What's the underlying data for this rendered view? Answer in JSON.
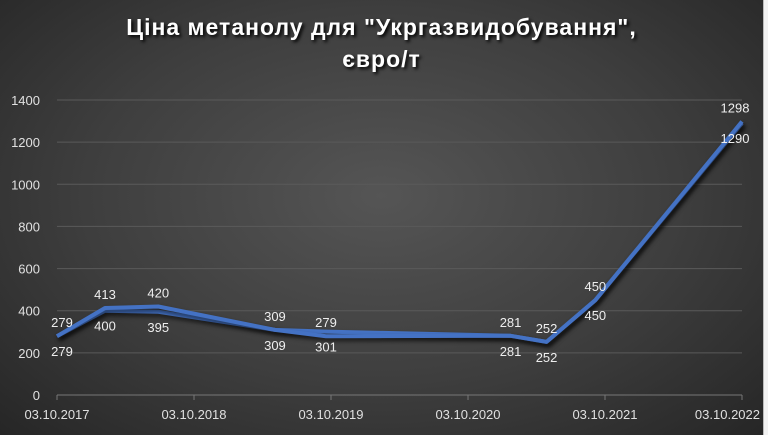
{
  "chart_data": {
    "type": "line",
    "title_line1": "Ціна метанолу для \"Укргазвидобування\",",
    "title_line2": "євро/т",
    "xlabel": "",
    "ylabel": "",
    "ylim": [
      0,
      1400
    ],
    "yticks": [
      0,
      200,
      400,
      600,
      800,
      1000,
      1200,
      1400
    ],
    "xticks": [
      "03.10.2017",
      "03.10.2018",
      "03.10.2019",
      "03.10.2020",
      "03.10.2021",
      "03.10.2022"
    ],
    "x": [
      "2017-10-03",
      "2018-02-08",
      "2018-06-30",
      "2019-05-07",
      "2019-09-20",
      "2021-01-24",
      "2021-04-30",
      "2021-09-07",
      "2022-10-03"
    ],
    "series": [
      {
        "values": [
          279,
          400,
          395,
          309,
          301,
          281,
          252,
          450,
          1290
        ]
      },
      {
        "values": [
          279,
          413,
          420,
          309,
          279,
          281,
          252,
          450,
          1298
        ]
      }
    ],
    "grid": true,
    "line_color": "#4472c4"
  }
}
